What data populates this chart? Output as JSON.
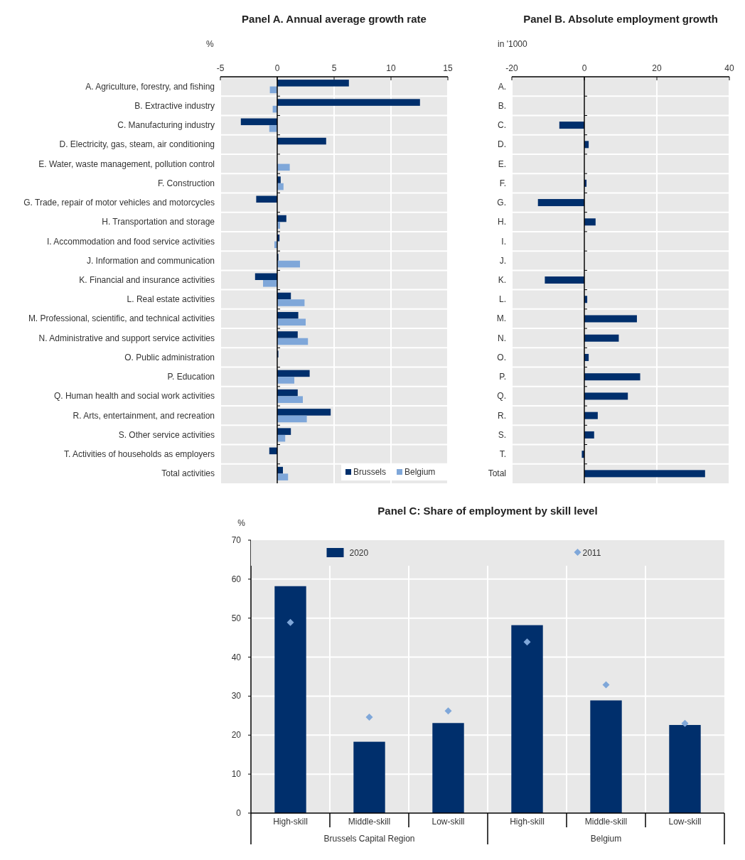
{
  "chart_data": [
    {
      "type": "bar",
      "orientation": "horizontal",
      "title": "Panel A. Annual average growth rate",
      "xlabel": "%",
      "categories": [
        "A. Agriculture, forestry, and fishing",
        "B. Extractive industry",
        "C. Manufacturing industry",
        "D. Electricity, gas, steam, air conditioning",
        "E. Water, waste management, pollution control",
        "F. Construction",
        "G. Trade, repair of motor vehicles and motorcycles",
        "H. Transportation and storage",
        "I. Accommodation and food service activities",
        "J. Information and communication",
        "K. Financial and insurance activities",
        "L. Real estate activities",
        "M. Professional, scientific, and technical activities",
        "N. Administrative and support service activities",
        "O. Public administration",
        "P. Education",
        "Q. Human health and social work activities",
        "R. Arts, entertainment, and recreation",
        "S. Other service activities",
        "T. Activities of households as employers",
        "Total activities"
      ],
      "series": [
        {
          "name": "Brussels",
          "color": "#002f6c",
          "values": [
            6.3,
            12.55,
            -3.2,
            4.3,
            0,
            0.3,
            -1.85,
            0.8,
            0.2,
            0.1,
            -1.95,
            1.2,
            1.85,
            1.8,
            0.1,
            2.85,
            1.8,
            4.7,
            1.2,
            -0.7,
            0.5
          ]
        },
        {
          "name": "Belgium",
          "color": "#7fa7d9",
          "values": [
            -0.65,
            -0.4,
            -0.7,
            0,
            1.1,
            0.55,
            0,
            0.25,
            -0.25,
            2.0,
            -1.25,
            2.4,
            2.5,
            2.7,
            0,
            1.5,
            2.25,
            2.6,
            0.7,
            0,
            0.95
          ]
        }
      ],
      "xlim": [
        -5,
        15
      ],
      "xticks": [
        -5,
        0,
        5,
        10,
        15
      ],
      "grid": "x",
      "legend": "bottom right"
    },
    {
      "type": "bar",
      "orientation": "horizontal",
      "title": "Panel B. Absolute employment growth",
      "xlabel": "in '1000",
      "categories": [
        "A.",
        "B.",
        "C.",
        "D.",
        "E.",
        "F.",
        "G.",
        "H.",
        "I.",
        "J.",
        "K.",
        "L.",
        "M.",
        "N.",
        "O.",
        "P.",
        "Q.",
        "R.",
        "S.",
        "T.",
        "Total"
      ],
      "series": [
        {
          "color": "#002f6c",
          "values": [
            0,
            0,
            -6.9,
            1.2,
            0,
            0.6,
            -12.8,
            3.1,
            0,
            0,
            -10.9,
            0.8,
            14.5,
            9.5,
            1.2,
            15.4,
            12.0,
            3.7,
            2.7,
            -0.7,
            33.3
          ]
        }
      ],
      "xlim": [
        -20,
        40
      ],
      "xticks": [
        -20,
        0,
        20,
        40
      ],
      "grid": "x"
    },
    {
      "type": "bar",
      "title": "Panel C: Share of employment by skill level",
      "ylabel": "%",
      "categories": [
        "High-skill",
        "Middle-skill",
        "Low-skill",
        "High-skill",
        "Middle-skill",
        "Low-skill"
      ],
      "series": [
        {
          "name": "2020",
          "color": "#002f6c",
          "values": [
            58.2,
            18.3,
            23.1,
            48.2,
            28.9,
            22.6
          ]
        },
        {
          "name": "2011",
          "type": "scatter",
          "color": "#7fa7d9",
          "marker": "diamond",
          "values": [
            48.9,
            24.6,
            26.2,
            43.9,
            32.9,
            23.0
          ]
        }
      ],
      "ylim": [
        0,
        70
      ],
      "yticks": [
        0,
        10,
        20,
        30,
        40,
        50,
        60,
        70
      ],
      "grid": true,
      "legend": "top",
      "annotations": [
        "Brussels Capital Region",
        "Belgium"
      ]
    }
  ]
}
